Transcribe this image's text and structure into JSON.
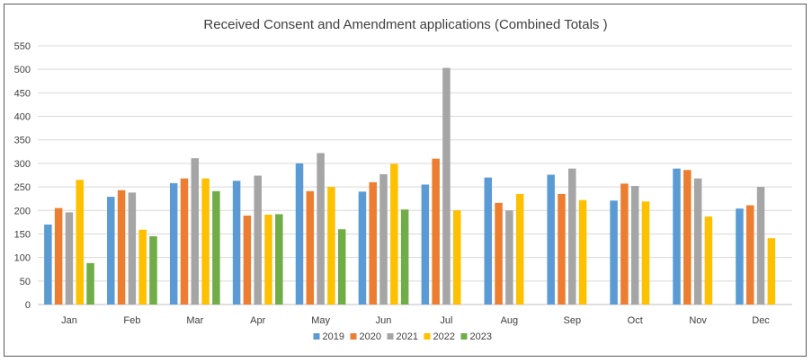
{
  "chart_data": {
    "type": "bar",
    "title": "Received Consent and Amendment applications (Combined Totals )",
    "xlabel": "",
    "ylabel": "",
    "categories": [
      "Jan",
      "Feb",
      "Mar",
      "Apr",
      "May",
      "Jun",
      "Jul",
      "Aug",
      "Sep",
      "Oct",
      "Nov",
      "Dec"
    ],
    "ylim": [
      0,
      550
    ],
    "yticks": [
      0,
      50,
      100,
      150,
      200,
      250,
      300,
      350,
      400,
      450,
      500,
      550
    ],
    "grid": true,
    "legend_position": "bottom",
    "series": [
      {
        "name": "2019",
        "color": "#5B9BD5",
        "values": [
          170,
          229,
          258,
          263,
          300,
          240,
          255,
          270,
          276,
          221,
          289,
          204
        ]
      },
      {
        "name": "2020",
        "color": "#ED7D31",
        "values": [
          205,
          243,
          268,
          189,
          241,
          260,
          310,
          216,
          235,
          257,
          286,
          211
        ]
      },
      {
        "name": "2021",
        "color": "#A5A5A5",
        "values": [
          196,
          238,
          311,
          274,
          322,
          277,
          503,
          200,
          289,
          252,
          268,
          250
        ]
      },
      {
        "name": "2022",
        "color": "#FFC000",
        "values": [
          265,
          159,
          268,
          191,
          250,
          299,
          200,
          235,
          222,
          219,
          187,
          141
        ]
      },
      {
        "name": "2023",
        "color": "#70AD47",
        "values": [
          88,
          145,
          241,
          192,
          160,
          202,
          null,
          null,
          null,
          null,
          null,
          null
        ]
      }
    ]
  }
}
